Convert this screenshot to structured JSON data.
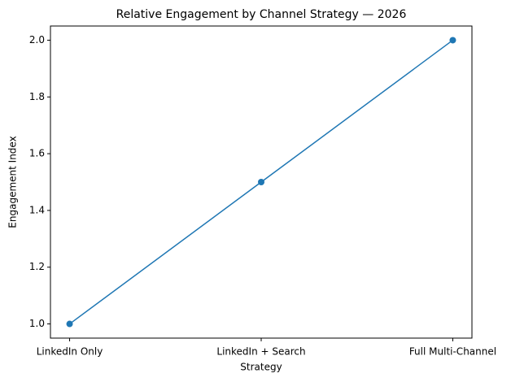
{
  "chart_data": {
    "type": "line",
    "title": "Relative Engagement by Channel Strategy — 2026",
    "x_label": "Strategy",
    "y_label": "Engagement Index",
    "categories": [
      "LinkedIn Only",
      "LinkedIn + Search",
      "Full Multi-Channel"
    ],
    "series": [
      {
        "name": "Engagement Index",
        "color": "#1f77b4",
        "values": [
          1.0,
          1.5,
          2.0
        ]
      }
    ],
    "ylim": [
      0.95,
      2.05
    ],
    "yticks": [
      {
        "value": 1.0,
        "label": "1.0"
      },
      1.2,
      1.4,
      1.6,
      1.8,
      {
        "value": 2.0,
        "label": "2.0"
      }
    ],
    "grid": false
  }
}
